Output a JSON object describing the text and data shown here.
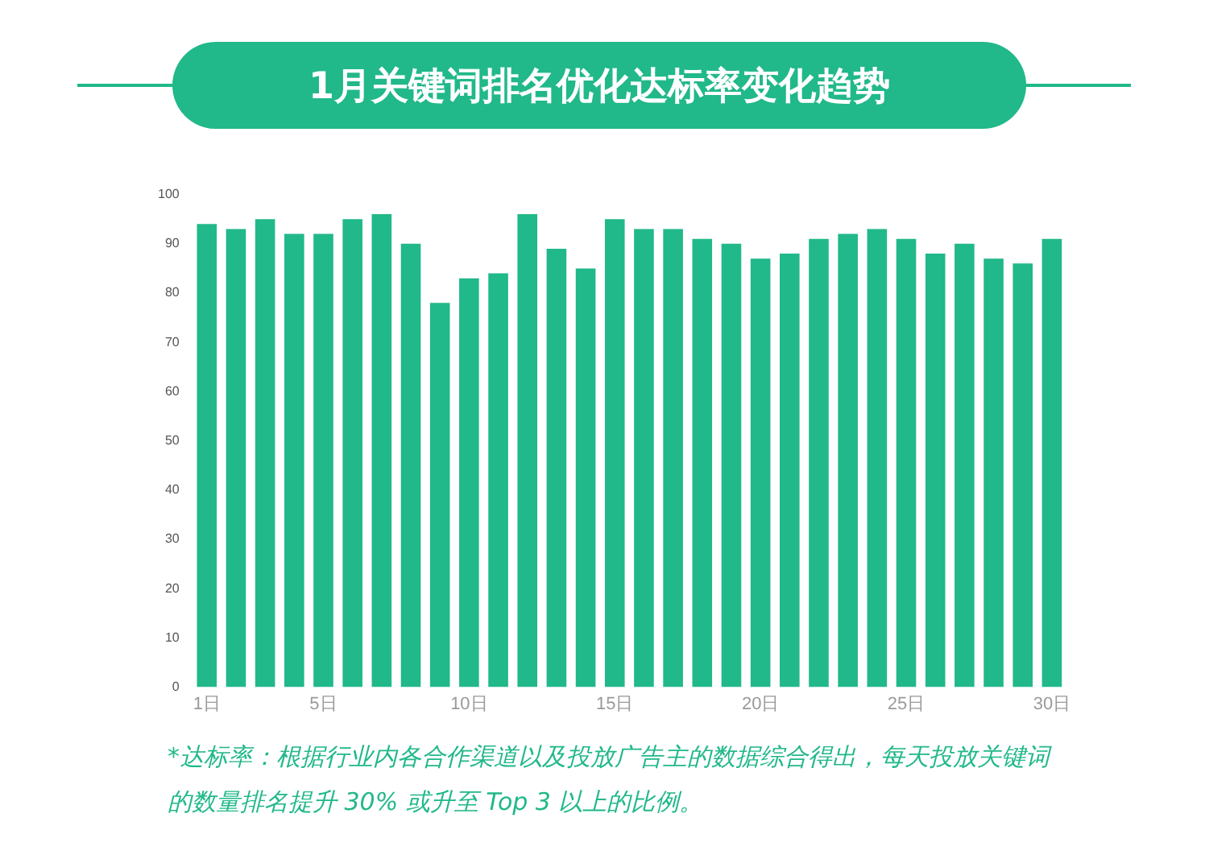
{
  "chart_data": {
    "type": "bar",
    "title": "1月关键词排名优化达标率变化趋势",
    "categories": [
      "1日",
      null,
      null,
      null,
      "5日",
      null,
      null,
      null,
      null,
      "10日",
      null,
      null,
      null,
      null,
      "15日",
      null,
      null,
      null,
      null,
      "20日",
      null,
      null,
      null,
      null,
      "25日",
      null,
      null,
      null,
      null,
      "30日"
    ],
    "values": [
      94,
      93,
      95,
      92,
      92,
      95,
      96,
      90,
      78,
      83,
      84,
      96,
      89,
      85,
      95,
      93,
      93,
      91,
      90,
      87,
      88,
      91,
      92,
      93,
      91,
      88,
      90,
      87,
      86,
      91
    ],
    "color": "#21b88a",
    "ylim": [
      0,
      100
    ],
    "yticks": [
      0,
      10,
      20,
      30,
      40,
      50,
      60,
      70,
      80,
      90,
      100
    ],
    "grid": false,
    "legend": false,
    "annotations": [
      "*达标率：根据行业内各合作渠道以及投放广告主的数据综合得出，每天投放关键词的数量排名提升 30% 或升至 Top 3 以上的比例。"
    ]
  }
}
